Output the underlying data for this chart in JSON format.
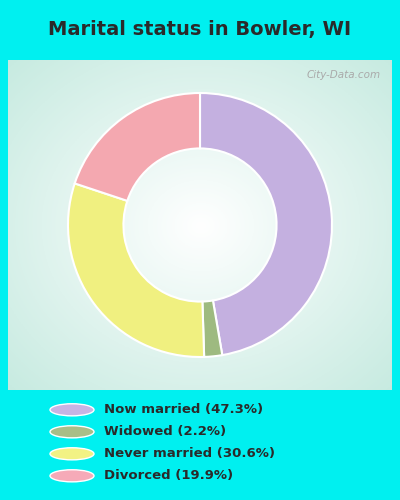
{
  "title": "Marital status in Bowler, WI",
  "slices": [
    47.3,
    2.2,
    30.6,
    19.9
  ],
  "labels": [
    "Now married (47.3%)",
    "Widowed (2.2%)",
    "Never married (30.6%)",
    "Divorced (19.9%)"
  ],
  "colors": [
    "#c4b0e0",
    "#9eba80",
    "#f0f080",
    "#f4a8b0"
  ],
  "legend_colors": [
    "#c8b4e4",
    "#a8be88",
    "#f2f284",
    "#f6aab8"
  ],
  "cyan_bg": "#00f0f0",
  "chart_bg": "#e8f5ee",
  "title_fontsize": 14,
  "title_color": "#2a2a2a",
  "donut_width": 0.42,
  "start_angle": 90,
  "watermark": "City-Data.com",
  "watermark_color": "#aaaaaa"
}
